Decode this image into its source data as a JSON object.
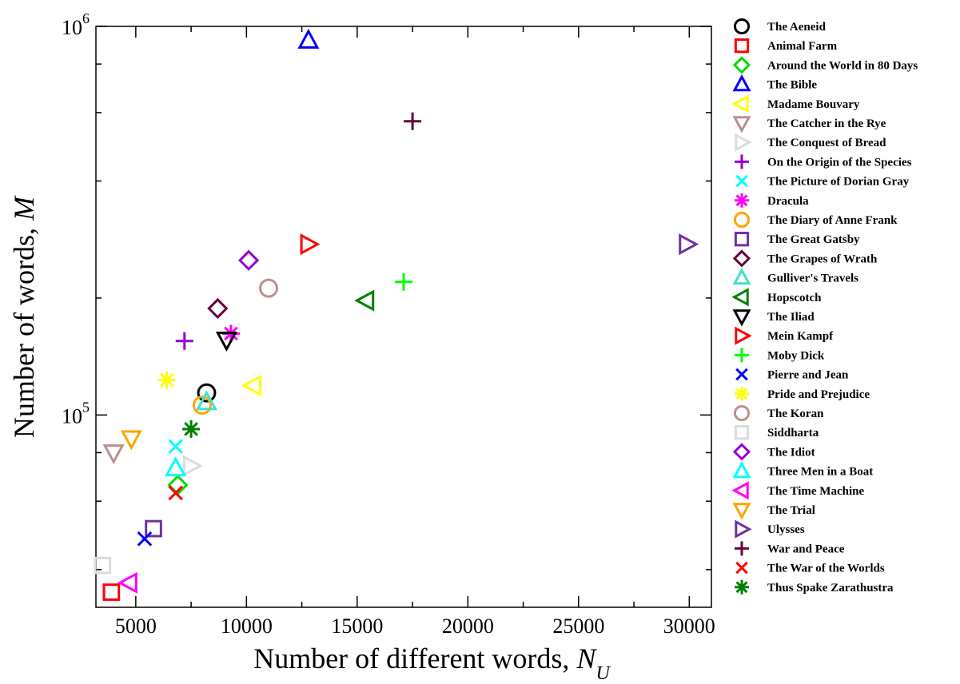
{
  "chart_data": {
    "type": "scatter",
    "xlabel": "Number of different words, ",
    "xlabel_symbol": "N",
    "xlabel_subscript": "U",
    "ylabel": "Number of words, ",
    "ylabel_symbol": "M",
    "xlim": [
      3200,
      31000
    ],
    "ylim": [
      32000,
      1000000
    ],
    "yscale": "log",
    "x_ticks": [
      5000,
      10000,
      15000,
      20000,
      25000,
      30000
    ],
    "x_tick_labels": [
      "5000",
      "10000",
      "15000",
      "20000",
      "25000",
      "30000"
    ],
    "y_ticks_major": [
      100000,
      1000000
    ],
    "y_tick_labels": [
      {
        "base": "10",
        "exp": "5"
      },
      {
        "base": "10",
        "exp": "6"
      }
    ],
    "legend_position": "right",
    "series": [
      {
        "name": "The Aeneid",
        "marker": "circle",
        "color": "#000000",
        "x": 8200,
        "y": 114000
      },
      {
        "name": "Animal Farm",
        "marker": "square",
        "color": "#ff0000",
        "x": 3900,
        "y": 35000
      },
      {
        "name": "Around the World in 80 Days",
        "marker": "diamond",
        "color": "#00dd00",
        "x": 6900,
        "y": 66000
      },
      {
        "name": "The Bible",
        "marker": "triangle-up",
        "color": "#0000ff",
        "x": 12800,
        "y": 920000
      },
      {
        "name": "Madame Bouvary",
        "marker": "triangle-left",
        "color": "#ffff00",
        "x": 10300,
        "y": 119000
      },
      {
        "name": "The Catcher in the Rye",
        "marker": "triangle-down",
        "color": "#bc8f8f",
        "x": 4000,
        "y": 80000
      },
      {
        "name": "The Conquest of Bread",
        "marker": "triangle-right",
        "color": "#dcdcdc",
        "x": 7500,
        "y": 74000
      },
      {
        "name": "On the Origin of the Species",
        "marker": "plus",
        "color": "#9400d3",
        "x": 7200,
        "y": 155000
      },
      {
        "name": "The Picture of Dorian Gray",
        "marker": "cross",
        "color": "#00ffff",
        "x": 6800,
        "y": 83000
      },
      {
        "name": "Dracula",
        "marker": "asterisk",
        "color": "#ff00ff",
        "x": 9300,
        "y": 162000
      },
      {
        "name": "The Diary of Anne Frank",
        "marker": "circle",
        "color": "#ffa500",
        "x": 8000,
        "y": 106000
      },
      {
        "name": "The Great Gatsby",
        "marker": "square",
        "color": "#7030a0",
        "x": 5800,
        "y": 51000
      },
      {
        "name": "The Grapes of Wrath",
        "marker": "diamond",
        "color": "#67003f",
        "x": 8700,
        "y": 188000
      },
      {
        "name": "Gulliver's Travels",
        "marker": "triangle-up",
        "color": "#40e0d0",
        "x": 8200,
        "y": 108000
      },
      {
        "name": "Hopscotch",
        "marker": "triangle-left",
        "color": "#008000",
        "x": 15400,
        "y": 197000
      },
      {
        "name": "The Iliad",
        "marker": "triangle-down",
        "color": "#000000",
        "x": 9100,
        "y": 156000
      },
      {
        "name": "Mein Kampf",
        "marker": "triangle-right",
        "color": "#ff0000",
        "x": 12800,
        "y": 275000
      },
      {
        "name": "Moby Dick",
        "marker": "plus",
        "color": "#00ff00",
        "x": 17100,
        "y": 220000
      },
      {
        "name": "Pierre and Jean",
        "marker": "cross",
        "color": "#0000ff",
        "x": 5400,
        "y": 48000
      },
      {
        "name": "Pride and Prejudice",
        "marker": "asterisk",
        "color": "#ffff00",
        "x": 6400,
        "y": 123000
      },
      {
        "name": "The Koran",
        "marker": "circle",
        "color": "#bc8f8f",
        "x": 11000,
        "y": 212000
      },
      {
        "name": "Siddharta",
        "marker": "square",
        "color": "#dcdcdc",
        "x": 3500,
        "y": 41000
      },
      {
        "name": "The Idiot",
        "marker": "diamond",
        "color": "#9400d3",
        "x": 10100,
        "y": 250000
      },
      {
        "name": "Three Men in a Boat",
        "marker": "triangle-up",
        "color": "#00ffff",
        "x": 6800,
        "y": 73000
      },
      {
        "name": "The Time Machine",
        "marker": "triangle-left",
        "color": "#ff00ff",
        "x": 4700,
        "y": 37000
      },
      {
        "name": "The Trial",
        "marker": "triangle-down",
        "color": "#ffa500",
        "x": 4800,
        "y": 87000
      },
      {
        "name": "Ulysses",
        "marker": "triangle-right",
        "color": "#7030a0",
        "x": 29900,
        "y": 275000
      },
      {
        "name": "War and Peace",
        "marker": "plus",
        "color": "#67003f",
        "x": 17500,
        "y": 570000
      },
      {
        "name": "The War of the Worlds",
        "marker": "cross",
        "color": "#ff0000",
        "x": 6800,
        "y": 63000
      },
      {
        "name": "Thus Spake Zarathustra",
        "marker": "asterisk",
        "color": "#008000",
        "x": 7500,
        "y": 92000
      }
    ]
  }
}
